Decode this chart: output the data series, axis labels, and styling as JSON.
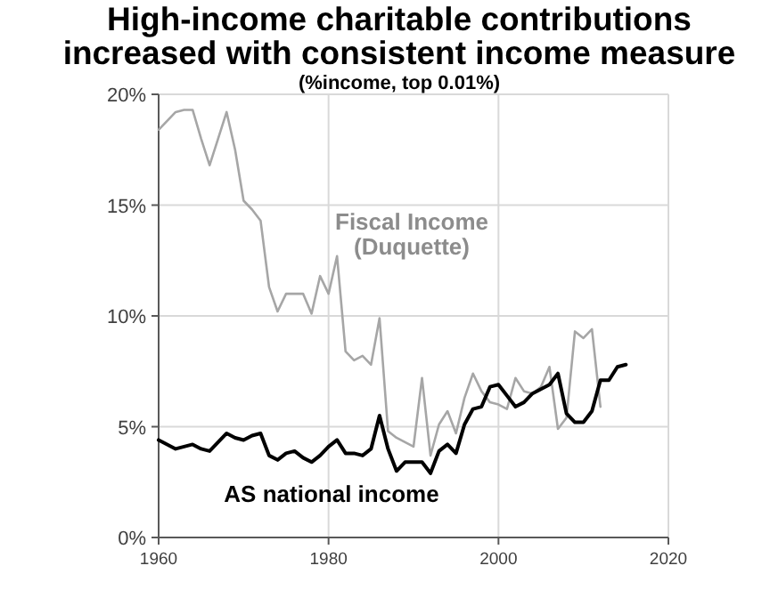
{
  "chart_data": {
    "type": "line",
    "title": "High-income charitable contributions\nincreased with consistent income measure",
    "subtitle": "(%income, top 0.01%)",
    "series": [
      {
        "name": "Fiscal Income\n(Duquette)",
        "color": "#a6a6a6",
        "x": [
          1960,
          1961,
          1962,
          1963,
          1964,
          1965,
          1966,
          1967,
          1968,
          1969,
          1970,
          1971,
          1972,
          1973,
          1974,
          1975,
          1976,
          1977,
          1978,
          1979,
          1980,
          1981,
          1982,
          1983,
          1984,
          1985,
          1986,
          1987,
          1988,
          1989,
          1990,
          1991,
          1992,
          1993,
          1994,
          1995,
          1996,
          1997,
          1998,
          1999,
          2000,
          2001,
          2002,
          2003,
          2004,
          2005,
          2006,
          2007,
          2008,
          2009,
          2010,
          2011,
          2012
        ],
        "values": [
          18.4,
          18.8,
          19.2,
          19.3,
          19.3,
          18.0,
          16.8,
          18.0,
          19.2,
          17.5,
          15.2,
          14.8,
          14.3,
          11.3,
          10.2,
          11.0,
          11.0,
          11.0,
          10.1,
          11.8,
          11.0,
          12.7,
          8.4,
          8.0,
          8.2,
          7.8,
          9.9,
          4.8,
          4.5,
          4.3,
          4.1,
          7.2,
          3.7,
          5.1,
          5.7,
          4.7,
          6.3,
          7.4,
          6.6,
          6.1,
          6.0,
          5.8,
          7.2,
          6.6,
          6.5,
          6.8,
          7.7,
          4.9,
          5.4,
          9.3,
          9.0,
          9.4,
          5.9
        ]
      },
      {
        "name": "AS national income",
        "color": "#000000",
        "x": [
          1960,
          1961,
          1962,
          1963,
          1964,
          1965,
          1966,
          1967,
          1968,
          1969,
          1970,
          1971,
          1972,
          1973,
          1974,
          1975,
          1976,
          1977,
          1978,
          1979,
          1980,
          1981,
          1982,
          1983,
          1984,
          1985,
          1986,
          1987,
          1988,
          1989,
          1990,
          1991,
          1992,
          1993,
          1994,
          1995,
          1996,
          1997,
          1998,
          1999,
          2000,
          2001,
          2002,
          2003,
          2004,
          2005,
          2006,
          2007,
          2008,
          2009,
          2010,
          2011,
          2012,
          2013,
          2014,
          2015
        ],
        "values": [
          4.4,
          4.2,
          4.0,
          4.1,
          4.2,
          4.0,
          3.9,
          4.3,
          4.7,
          4.5,
          4.4,
          4.6,
          4.7,
          3.7,
          3.5,
          3.8,
          3.9,
          3.6,
          3.4,
          3.7,
          4.1,
          4.4,
          3.8,
          3.8,
          3.7,
          4.0,
          5.5,
          4.0,
          3.0,
          3.4,
          3.4,
          3.4,
          2.9,
          3.9,
          4.2,
          3.8,
          5.1,
          5.8,
          5.9,
          6.8,
          6.9,
          6.4,
          5.9,
          6.1,
          6.5,
          6.7,
          6.9,
          7.4,
          5.6,
          5.2,
          5.2,
          5.7,
          7.1,
          7.1,
          7.7,
          7.8
        ]
      }
    ],
    "xlim": [
      1960,
      2020
    ],
    "xticks": [
      1960,
      1980,
      2000,
      2020
    ],
    "ylim": [
      0,
      20
    ],
    "yticks": [
      {
        "value": 0,
        "label": "0%"
      },
      {
        "value": 5,
        "label": "5%"
      },
      {
        "value": 10,
        "label": "10%"
      },
      {
        "value": 15,
        "label": "15%"
      },
      {
        "value": 20,
        "label": "20%"
      }
    ],
    "grid": true,
    "line_style": "solid"
  }
}
